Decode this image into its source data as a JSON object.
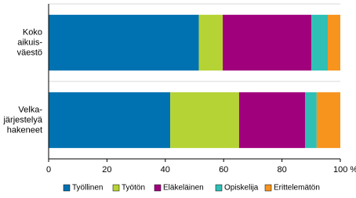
{
  "chart_data": {
    "type": "stacked-barh",
    "categories": [
      [
        "Koko",
        "aikuis-",
        "väestö"
      ],
      [
        "Velka-",
        "järjestelyä",
        "hakeneet"
      ]
    ],
    "series": [
      {
        "name": "Työllinen",
        "color": "#0072b2",
        "values": [
          51.5,
          41.7
        ]
      },
      {
        "name": "Työtön",
        "color": "#b5d334",
        "values": [
          8.2,
          23.6
        ]
      },
      {
        "name": "Eläkeläinen",
        "color": "#a1007d",
        "values": [
          30.4,
          22.6
        ]
      },
      {
        "name": "Opiskelija",
        "color": "#2fbfb5",
        "values": [
          5.6,
          4.0
        ]
      },
      {
        "name": "Erittelemätön",
        "color": "#f7941d",
        "values": [
          4.3,
          8.1
        ]
      }
    ],
    "xlim": [
      0,
      100
    ],
    "xticks": [
      0,
      20,
      40,
      60,
      80,
      {
        "value": 100,
        "label": "100 %"
      }
    ],
    "legend": "bottom"
  }
}
